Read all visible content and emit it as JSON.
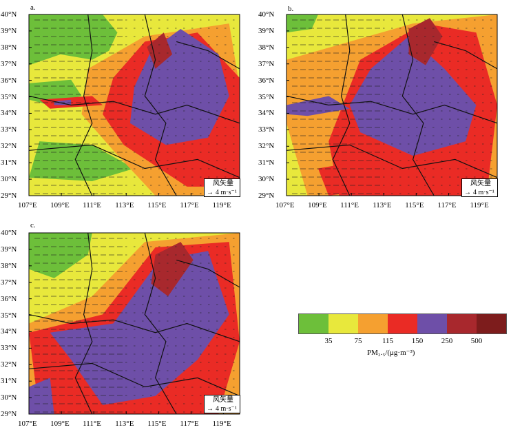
{
  "panels": [
    {
      "label": "a.",
      "id": "a",
      "wind_key_title": "风矢量",
      "wind_key_speed": "4 m·s⁻¹"
    },
    {
      "label": "b.",
      "id": "b",
      "wind_key_title": "风矢量",
      "wind_key_speed": "4 m·s⁻¹"
    },
    {
      "label": "c.",
      "id": "c",
      "wind_key_title": "风矢量",
      "wind_key_speed": "4 m·s⁻¹"
    }
  ],
  "lat_labels": [
    "40°N",
    "39°N",
    "38°N",
    "37°N",
    "36°N",
    "35°N",
    "34°N",
    "33°N",
    "32°N",
    "31°N",
    "30°N",
    "29°N"
  ],
  "lon_labels": [
    "107°E",
    "109°E",
    "111°E",
    "113°E",
    "115°E",
    "117°E",
    "119°E"
  ],
  "legend": {
    "colors": [
      "#6dbf3a",
      "#e8e83c",
      "#f5a030",
      "#ea2b25",
      "#6e4fa8",
      "#a8282d",
      "#7d1c1c"
    ],
    "ticks": [
      "35",
      "75",
      "115",
      "150",
      "250",
      "500"
    ],
    "title": "PM₂.₅/(μg·m⁻³)"
  },
  "wind_arrow_glyph": "→"
}
